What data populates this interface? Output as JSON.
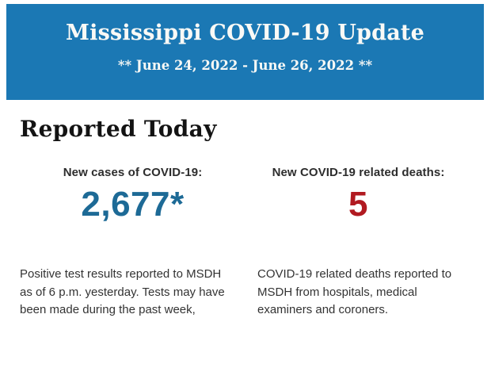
{
  "banner": {
    "title": "Mississippi COVID-19 Update",
    "date_range": "** June 24, 2022 - June 26, 2022 **",
    "background_color": "#1b78b4",
    "text_color": "#f9f9f6"
  },
  "section": {
    "heading": "Reported Today"
  },
  "stats": [
    {
      "label": "New cases of COVID-19:",
      "value": "2,677*",
      "value_color": "#1d6a96",
      "description": "Positive test results reported to MSDH as of 6 p.m. yesterday. Tests may have been made during the past week,"
    },
    {
      "label": "New COVID-19 related deaths:",
      "value": "5",
      "value_color": "#b11a21",
      "description": "COVID-19 related deaths reported to MSDH from hospitals, medical examiners and coroners."
    }
  ]
}
